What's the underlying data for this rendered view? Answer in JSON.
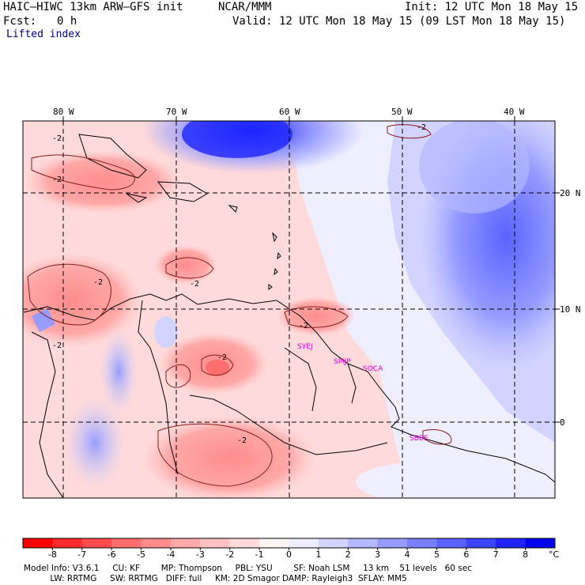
{
  "header": {
    "model": "HAIC–HIWC 13km ARW–GFS init",
    "center": "NCAR/MMM",
    "init": "Init: 12 UTC Mon 18 May 15",
    "fcst_label": "Fcst:",
    "fcst_value": "0 h",
    "valid": "Valid: 12 UTC Mon 18 May 15 (09 LST Mon 18 May 15)",
    "field": "Lifted index"
  },
  "axes": {
    "lon_labels": [
      "80 W",
      "70 W",
      "60 W",
      "50 W",
      "40 W"
    ],
    "lat_labels": [
      "20 N",
      "10 N",
      "0"
    ]
  },
  "stations": [
    "SYEJ",
    "SMJP",
    "SOCA",
    "SBBE"
  ],
  "contour_labels": [
    "-2",
    "-2",
    "-2",
    "-2",
    "-2",
    "-2",
    "-2",
    "-2",
    "-2"
  ],
  "colorbar": {
    "unit": "°C",
    "labels": [
      "-8",
      "-7",
      "-6",
      "-5",
      "-4",
      "-3",
      "-2",
      "-1",
      "0",
      "1",
      "2",
      "3",
      "4",
      "5",
      "6",
      "7",
      "8"
    ],
    "colors": [
      "#ff0000",
      "#ff2a2a",
      "#ff4d4d",
      "#ff6e6e",
      "#ff8c8c",
      "#ffa8a8",
      "#ffc2c2",
      "#ffdada",
      "#fff4f4",
      "#eeeeff",
      "#d2d4ff",
      "#b4b8ff",
      "#969cff",
      "#7880ff",
      "#5a62ff",
      "#3c44ff",
      "#1e24ff",
      "#0000ee"
    ]
  },
  "footer": {
    "line1": "Model Info: V3.6.1     CU: KF        MP: Thompson     PBL: YSU        SF: Noah LSM     13 km    51 levels   60 sec",
    "line2": "          LW: RRTMG     SW: RRTMG   DIFF: full     KM: 2D Smagor DAMP: Rayleigh3  SFLAY: MM5"
  },
  "chart_data": {
    "type": "heatmap",
    "title": "Lifted index",
    "xlabel": "",
    "ylabel": "",
    "lon_ticks": [
      -80,
      -70,
      -60,
      -50,
      -40
    ],
    "lat_ticks": [
      20,
      10,
      0
    ],
    "color_scale_min": -8,
    "color_scale_max": 8,
    "contour_level": -2,
    "unit": "°C"
  }
}
